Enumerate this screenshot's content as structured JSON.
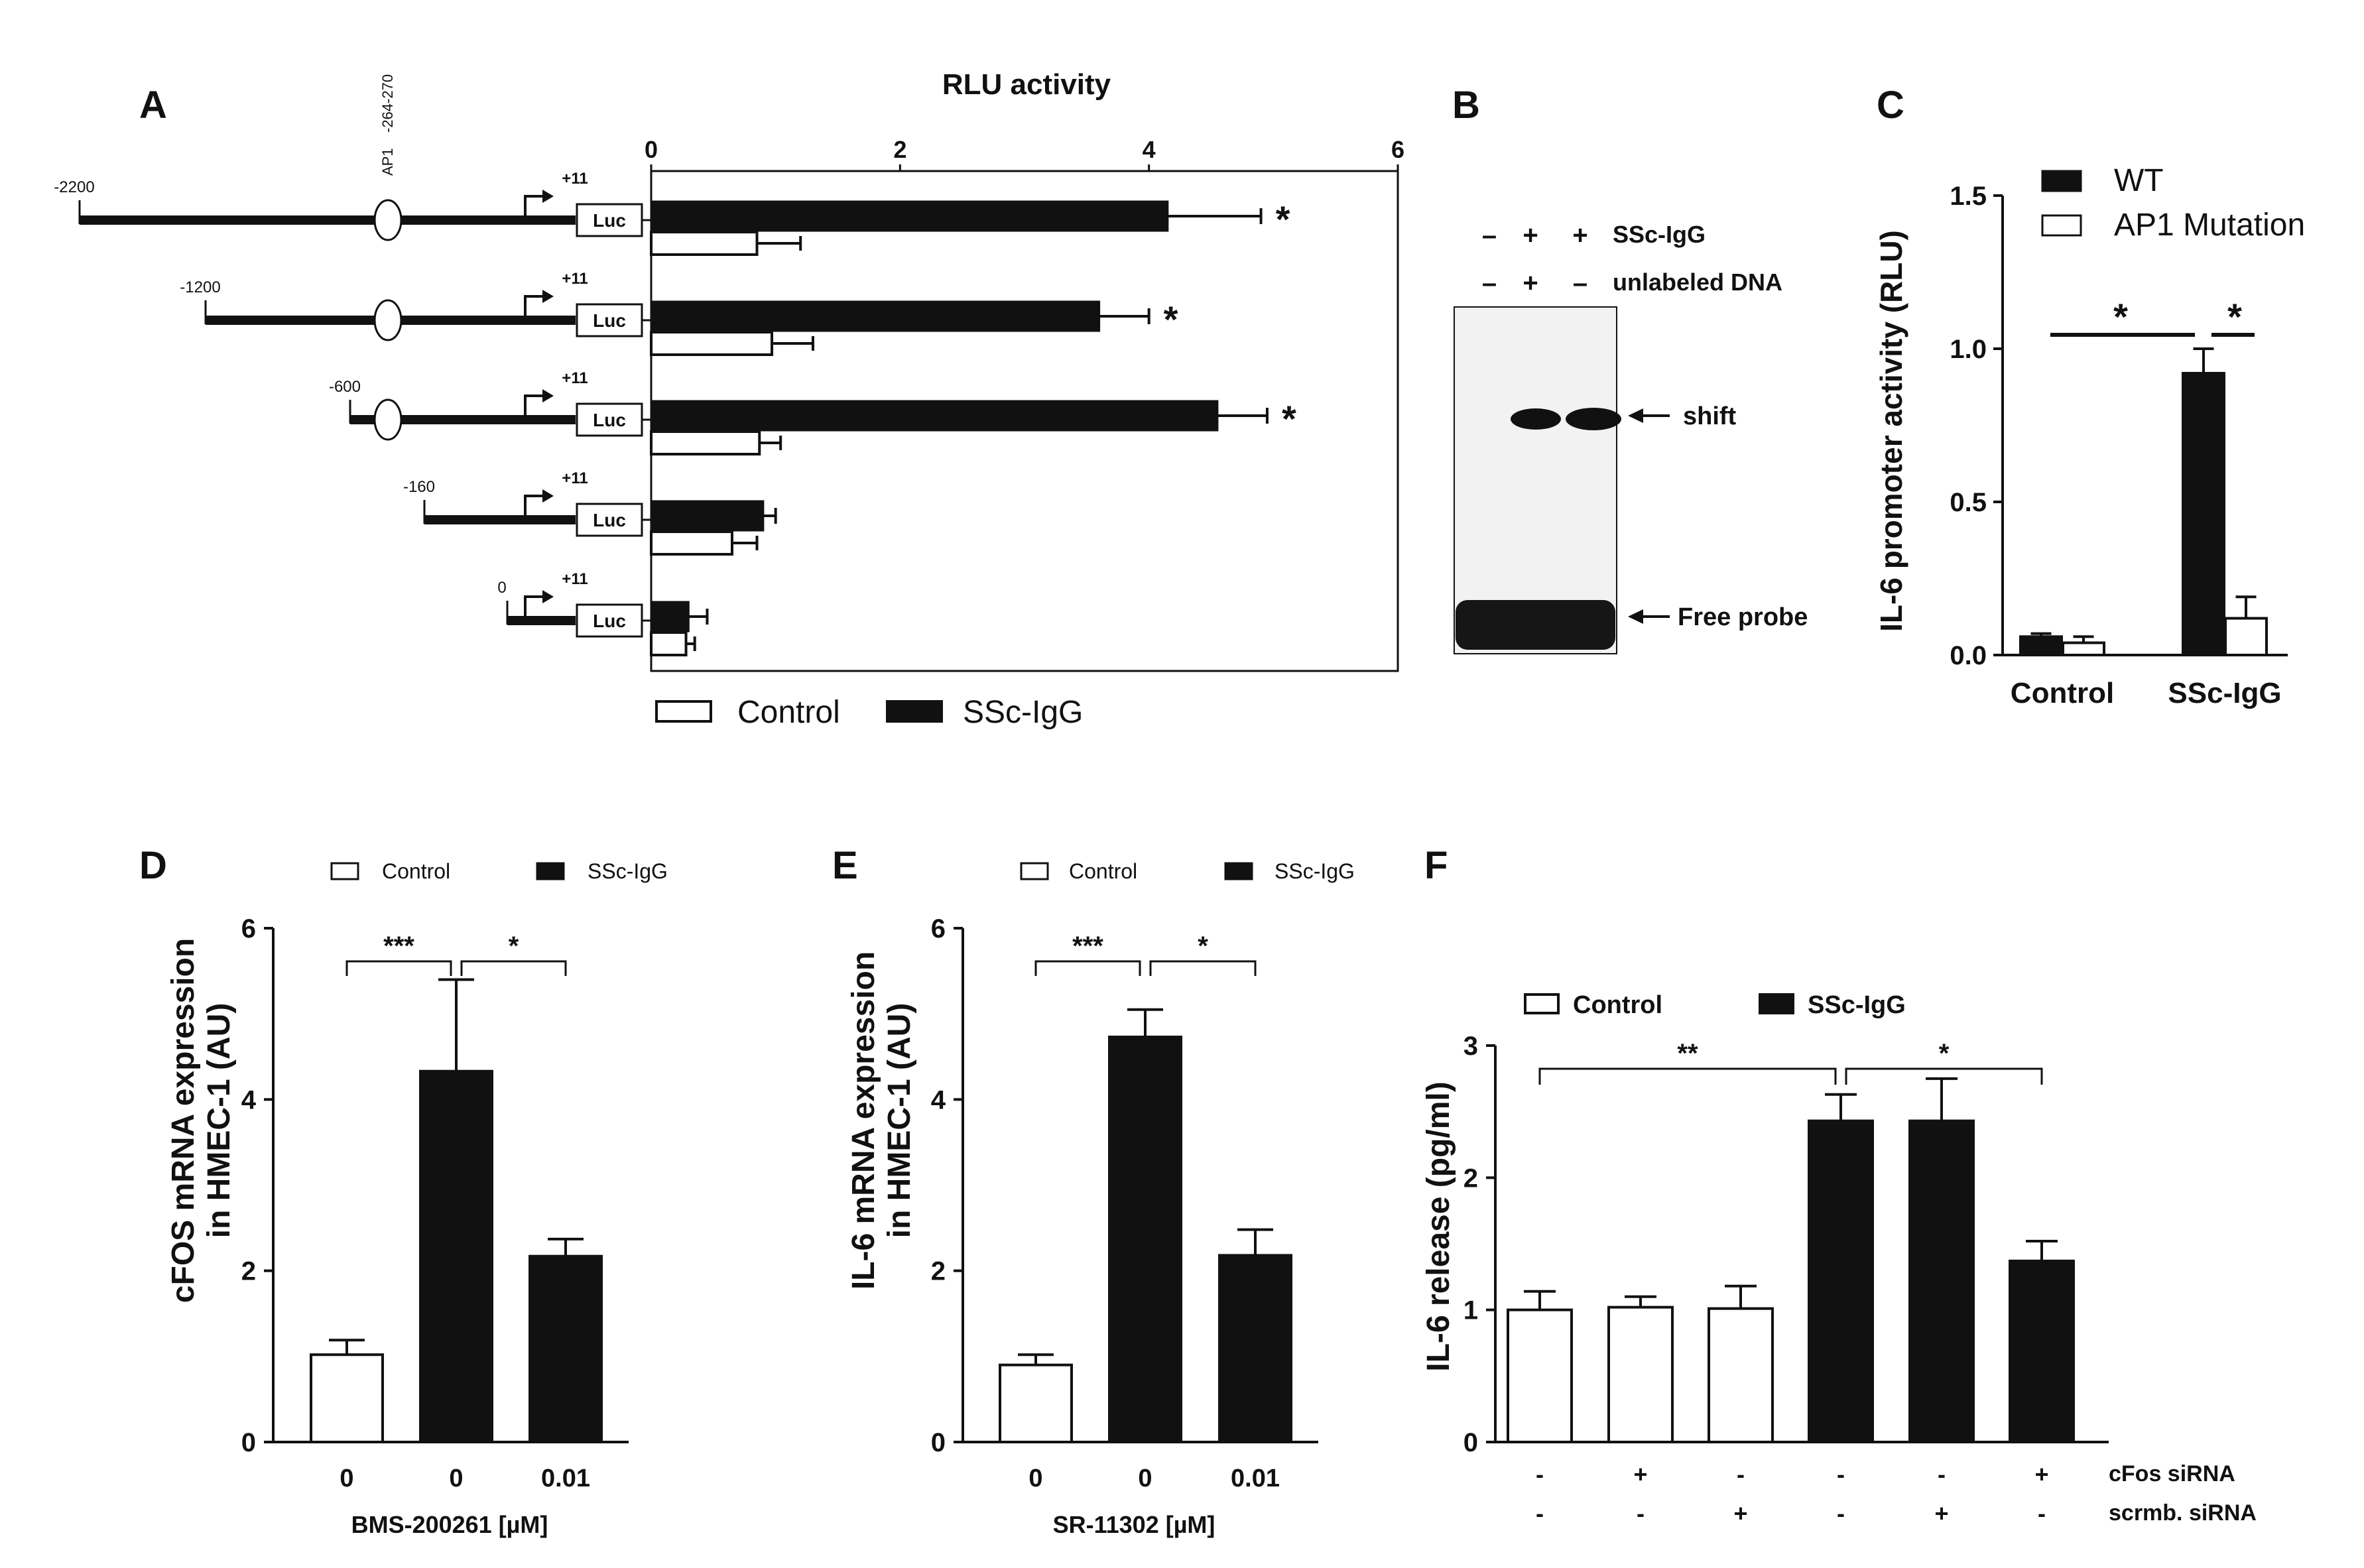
{
  "colors": {
    "fg": "#111111",
    "bg": "#ffffff",
    "blot_bg": "#f2f2f2"
  },
  "chart_data": [
    {
      "panel": "A",
      "type": "bar",
      "orientation": "horizontal",
      "title": "RLU activity",
      "xlim": [
        0,
        6
      ],
      "xticks": [
        "0",
        "2",
        "4",
        "6"
      ],
      "constructs": [
        {
          "start_label": "-2200",
          "end_label": "+11",
          "has_ap1": true,
          "box_label": "Luc"
        },
        {
          "start_label": "-1200",
          "end_label": "+11",
          "has_ap1": true,
          "box_label": "Luc"
        },
        {
          "start_label": "-600",
          "end_label": "+11",
          "has_ap1": true,
          "box_label": "Luc"
        },
        {
          "start_label": "-160",
          "end_label": "+11",
          "has_ap1": false,
          "box_label": "Luc"
        },
        {
          "start_label": "0",
          "end_label": "+11",
          "has_ap1": false,
          "box_label": "Luc"
        }
      ],
      "ap1_label": "AP1",
      "ap1_position_label": "-264-270",
      "series": [
        {
          "name": "SSc-IgG",
          "fill": "black",
          "values": [
            4.15,
            3.6,
            4.55,
            0.9,
            0.3
          ],
          "errors": [
            0.75,
            0.4,
            0.4,
            0.1,
            0.15
          ]
        },
        {
          "name": "Control",
          "fill": "white",
          "values": [
            0.85,
            0.97,
            0.87,
            0.65,
            0.28
          ],
          "errors": [
            0.35,
            0.33,
            0.17,
            0.2,
            0.07
          ]
        }
      ],
      "significance": [
        "*",
        "*",
        "*",
        "",
        ""
      ],
      "legend": [
        "Control",
        "SSc-IgG"
      ]
    },
    {
      "panel": "B",
      "type": "gel",
      "lane_header_rows": [
        {
          "label": "SSc-IgG",
          "values": [
            "–",
            "+",
            "+"
          ]
        },
        {
          "label": "unlabeled DNA",
          "values": [
            "–",
            "+",
            "–"
          ]
        }
      ],
      "band_labels": [
        "shift",
        "Free probe"
      ]
    },
    {
      "panel": "C",
      "type": "bar",
      "ylabel": "IL-6 promoter activity (RLU)",
      "ylim": [
        0,
        1.5
      ],
      "yticks": [
        "0.0",
        "0.5",
        "1.0",
        "1.5"
      ],
      "categories": [
        "Control",
        "SSc-IgG"
      ],
      "series": [
        {
          "name": "WT",
          "fill": "black",
          "values": [
            0.06,
            0.92
          ],
          "errors": [
            0.01,
            0.08
          ]
        },
        {
          "name": "AP1 Mutation",
          "fill": "white",
          "values": [
            0.04,
            0.12
          ],
          "errors": [
            0.02,
            0.07
          ]
        }
      ],
      "significance": [
        "*",
        "*"
      ]
    },
    {
      "panel": "D",
      "type": "bar",
      "ylabel_lines": [
        "cFOS mRNA expression",
        "in HMEC-1 (AU)"
      ],
      "xlabel": "BMS-200261 [µM]",
      "ylim": [
        0,
        6
      ],
      "yticks": [
        "0",
        "2",
        "4",
        "6"
      ],
      "categories": [
        "0",
        "0",
        "0.01"
      ],
      "values": [
        1.02,
        4.33,
        2.17
      ],
      "errors": [
        0.17,
        1.07,
        0.2
      ],
      "fills": [
        "white",
        "black",
        "black"
      ],
      "legend": [
        "Control",
        "SSc-IgG"
      ],
      "significance": [
        "***",
        "*"
      ]
    },
    {
      "panel": "E",
      "type": "bar",
      "ylabel_lines": [
        "IL-6 mRNA expression",
        "in HMEC-1 (AU)"
      ],
      "xlabel": "SR-11302 [µM]",
      "ylim": [
        0,
        6
      ],
      "yticks": [
        "0",
        "2",
        "4",
        "6"
      ],
      "categories": [
        "0",
        "0",
        "0.01"
      ],
      "values": [
        0.9,
        4.73,
        2.18
      ],
      "errors": [
        0.12,
        0.32,
        0.3
      ],
      "fills": [
        "white",
        "black",
        "black"
      ],
      "legend": [
        "Control",
        "SSc-IgG"
      ],
      "significance": [
        "***",
        "*"
      ]
    },
    {
      "panel": "F",
      "type": "bar",
      "ylabel": "IL-6 release (pg/ml)",
      "ylim": [
        0,
        3
      ],
      "yticks": [
        "0",
        "1",
        "2",
        "3"
      ],
      "values": [
        1.0,
        1.02,
        1.01,
        2.43,
        2.43,
        1.37
      ],
      "errors": [
        0.14,
        0.08,
        0.17,
        0.2,
        0.32,
        0.15
      ],
      "fills": [
        "white",
        "white",
        "white",
        "black",
        "black",
        "black"
      ],
      "treatment_rows": [
        {
          "label": "cFos siRNA",
          "values": [
            "-",
            "+",
            "-",
            "-",
            "-",
            "+"
          ]
        },
        {
          "label": "scrmb. siRNA",
          "values": [
            "-",
            "-",
            "+",
            "-",
            "+",
            "-"
          ]
        }
      ],
      "legend": [
        "Control",
        "SSc-IgG"
      ],
      "significance": [
        "**",
        "*"
      ]
    }
  ]
}
